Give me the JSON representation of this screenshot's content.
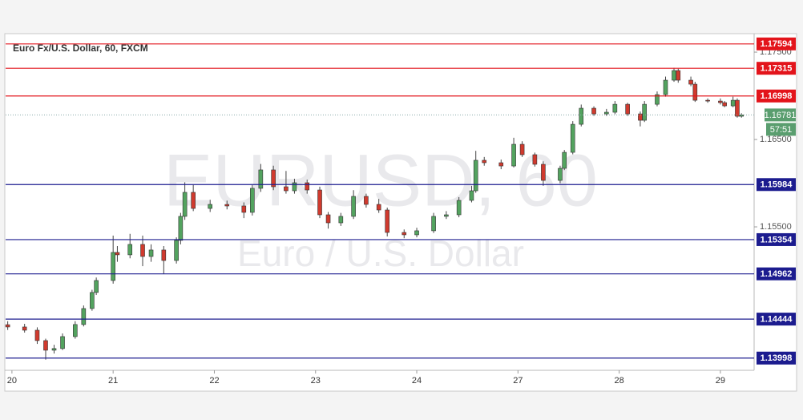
{
  "chart_data": {
    "type": "candlestick",
    "title": "Euro Fx/U.S. Dollar, 60, FXCM",
    "watermark": "EURUSD, 60",
    "watermark_subtitle": "Euro / U.S. Dollar",
    "up_color": "#53a35f",
    "down_color": "#d03a2e",
    "x": [
      -1,
      3,
      6,
      8,
      10,
      12,
      15,
      17,
      19,
      20,
      24,
      25,
      28,
      31,
      33,
      36,
      39,
      40,
      41,
      43,
      47,
      51,
      55,
      57,
      59,
      62,
      65,
      67,
      70,
      73,
      75,
      78,
      81,
      84,
      87,
      89,
      93,
      96,
      100,
      103,
      106,
      109,
      110,
      112,
      116,
      119,
      121,
      124,
      126,
      130,
      131,
      133,
      135,
      138,
      141,
      143,
      146,
      149,
      150,
      153,
      155,
      157,
      158,
      161,
      162,
      165,
      168,
      169,
      171,
      172,
      173
    ],
    "open": [
      1.1438,
      1.14354,
      1.14317,
      1.14198,
      1.14088,
      1.14107,
      1.14244,
      1.14382,
      1.14565,
      1.14749,
      1.14886,
      1.15207,
      1.1518,
      1.15299,
      1.15161,
      1.15235,
      1.15115,
      1.15345,
      1.1562,
      1.15895,
      1.15711,
      1.15757,
      1.15739,
      1.15666,
      1.15941,
      1.16152,
      1.15959,
      1.15913,
      1.16005,
      1.15922,
      1.15638,
      1.15546,
      1.1562,
      1.15849,
      1.15757,
      1.15693,
      1.15436,
      1.15409,
      1.15455,
      1.1562,
      1.15638,
      1.15803,
      1.15913,
      1.16262,
      1.16234,
      1.16197,
      1.16445,
      1.16326,
      1.16216,
      1.16032,
      1.1617,
      1.16353,
      1.16674,
      1.16858,
      1.16793,
      1.16812,
      1.16903,
      1.16793,
      1.1672,
      1.16903,
      1.17014,
      1.17179,
      1.17289,
      1.17179,
      1.17133,
      1.16949,
      1.1694,
      1.16922,
      1.16885,
      1.16949,
      1.16766
    ],
    "high": [
      1.1442,
      1.1439,
      1.1435,
      1.1422,
      1.1415,
      1.1428,
      1.1442,
      1.146,
      1.1478,
      1.1492,
      1.154,
      1.1528,
      1.1542,
      1.154,
      1.153,
      1.1528,
      1.1538,
      1.1566,
      1.1601,
      1.1598,
      1.1581,
      1.158,
      1.1578,
      1.1598,
      1.1622,
      1.162,
      1.1614,
      1.1605,
      1.1604,
      1.1596,
      1.1567,
      1.1566,
      1.1592,
      1.1588,
      1.1582,
      1.1572,
      1.1547,
      1.1549,
      1.1566,
      1.1568,
      1.1584,
      1.1597,
      1.1637,
      1.163,
      1.1627,
      1.1652,
      1.1648,
      1.1635,
      1.1625,
      1.162,
      1.1638,
      1.1671,
      1.169,
      1.1688,
      1.1685,
      1.1694,
      1.1692,
      1.1682,
      1.1694,
      1.1705,
      1.1722,
      1.1732,
      1.1731,
      1.1722,
      1.1716,
      1.1697,
      1.1697,
      1.1694,
      1.1699,
      1.1697,
      1.168
    ],
    "low": [
      1.1432,
      1.1429,
      1.1416,
      1.1398,
      1.1405,
      1.1409,
      1.1422,
      1.1436,
      1.1454,
      1.1472,
      1.1485,
      1.151,
      1.1514,
      1.1505,
      1.151,
      1.1496,
      1.1508,
      1.153,
      1.1558,
      1.1568,
      1.1567,
      1.157,
      1.156,
      1.1563,
      1.159,
      1.1592,
      1.1588,
      1.1588,
      1.1588,
      1.156,
      1.1548,
      1.1551,
      1.1559,
      1.1572,
      1.1566,
      1.1539,
      1.1537,
      1.1538,
      1.1543,
      1.1559,
      1.1561,
      1.1578,
      1.1589,
      1.162,
      1.1616,
      1.1618,
      1.163,
      1.1619,
      1.1597,
      1.16,
      1.1615,
      1.1633,
      1.1665,
      1.1677,
      1.1677,
      1.1679,
      1.1677,
      1.1665,
      1.167,
      1.1688,
      1.1699,
      1.1716,
      1.1715,
      1.1711,
      1.1693,
      1.1692,
      1.169,
      1.1687,
      1.1687,
      1.1675,
      1.1675
    ],
    "close": [
      1.14354,
      1.14317,
      1.14198,
      1.14088,
      1.14107,
      1.14244,
      1.14382,
      1.14565,
      1.14749,
      1.14886,
      1.15207,
      1.1518,
      1.15299,
      1.15161,
      1.15235,
      1.15115,
      1.15345,
      1.1562,
      1.15895,
      1.15711,
      1.15757,
      1.15739,
      1.15666,
      1.15941,
      1.16152,
      1.15959,
      1.15913,
      1.16005,
      1.15922,
      1.15638,
      1.15546,
      1.1562,
      1.15849,
      1.15757,
      1.15693,
      1.15436,
      1.15409,
      1.15455,
      1.1562,
      1.15638,
      1.15803,
      1.15913,
      1.16262,
      1.16234,
      1.16197,
      1.16445,
      1.16326,
      1.16216,
      1.16032,
      1.1617,
      1.16353,
      1.16674,
      1.16858,
      1.16793,
      1.16812,
      1.16903,
      1.16793,
      1.1672,
      1.16903,
      1.17014,
      1.17179,
      1.17289,
      1.17179,
      1.17133,
      1.16949,
      1.1694,
      1.16922,
      1.16885,
      1.16949,
      1.16766,
      1.16781
    ],
    "xlim": [
      -1.5,
      176
    ],
    "xticks": [
      {
        "value": 0,
        "label": "20"
      },
      {
        "value": 24,
        "label": "21"
      },
      {
        "value": 48,
        "label": "22"
      },
      {
        "value": 72,
        "label": "23"
      },
      {
        "value": 96,
        "label": "24"
      },
      {
        "value": 120,
        "label": "27"
      },
      {
        "value": 144,
        "label": "28"
      },
      {
        "value": 168,
        "label": "29"
      }
    ],
    "ylim": [
      1.13858,
      1.17693
    ],
    "yticks": [
      {
        "value": 1.155,
        "label": "1.15500"
      },
      {
        "value": 1.165,
        "label": "1.16500"
      },
      {
        "value": 1.175,
        "label": "1.17500"
      }
    ],
    "levels": [
      {
        "value": 1.17594,
        "color": "#e3141b"
      },
      {
        "value": 1.17315,
        "color": "#e3141b"
      },
      {
        "value": 1.16998,
        "color": "#e3141b"
      },
      {
        "value": 1.15984,
        "color": "#1c1c8f"
      },
      {
        "value": 1.15354,
        "color": "#1c1c8f"
      },
      {
        "value": 1.14962,
        "color": "#1c1c8f"
      },
      {
        "value": 1.14444,
        "color": "#1c1c8f"
      },
      {
        "value": 1.13998,
        "color": "#1c1c8f"
      }
    ],
    "last_price": {
      "value": 1.16781,
      "color": "#5a9e6f"
    },
    "countdown": "57:51"
  }
}
